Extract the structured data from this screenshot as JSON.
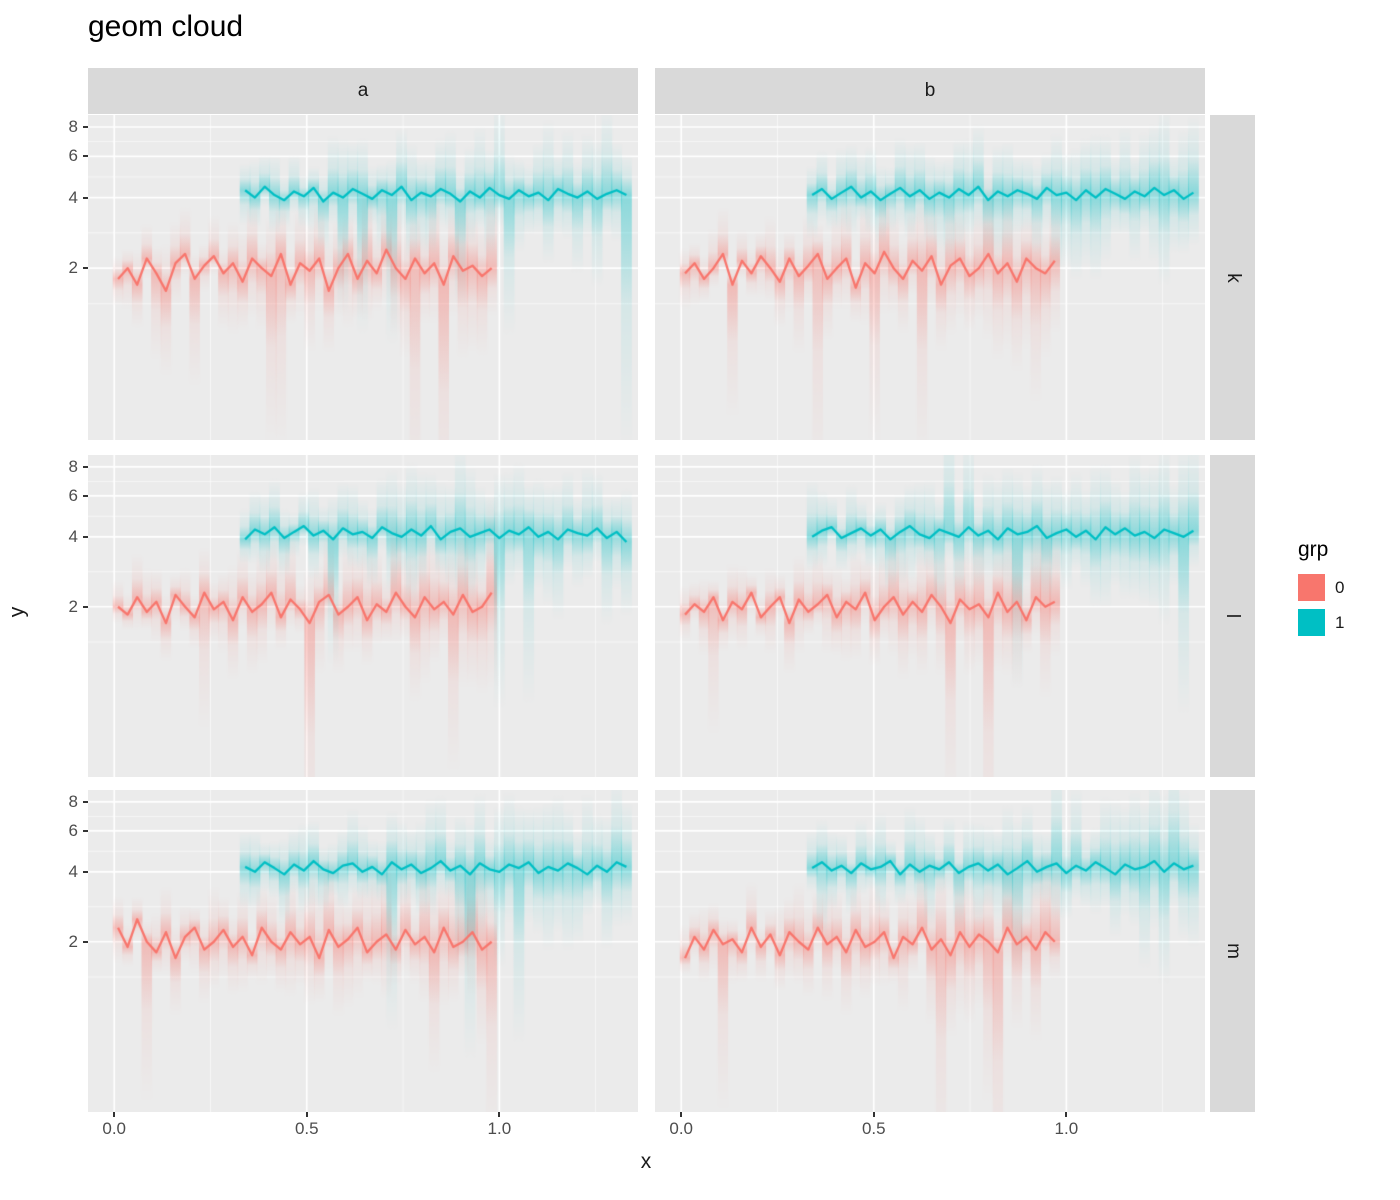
{
  "title": "geom cloud",
  "axes": {
    "x_title": "x",
    "y_title": "y",
    "x_ticks": [
      0,
      0.5,
      1
    ],
    "x_tick_labels": [
      "0.0",
      "0.5",
      "1.0"
    ],
    "y_ticks": [
      8,
      6,
      4,
      2
    ],
    "y_tick_labels": [
      "8",
      "6",
      "4",
      "2"
    ]
  },
  "facets": {
    "cols": [
      "a",
      "b"
    ],
    "rows": [
      "k",
      "l",
      "m"
    ]
  },
  "legend": {
    "title": "grp",
    "entries": [
      {
        "label": "0",
        "color": "#F8766D"
      },
      {
        "label": "1",
        "color": "#00BFC4"
      }
    ]
  },
  "chart_data": {
    "type": "line",
    "title": "geom cloud",
    "xlabel": "x",
    "ylabel": "y",
    "facet_cols": [
      "a",
      "b"
    ],
    "facet_rows": [
      "k",
      "l",
      "m"
    ],
    "panel_bg": "#EBEBEB",
    "grid_color": "#FFFFFF",
    "series_colors": {
      "0": "#F8766D",
      "1": "#00BFC4"
    },
    "scales": {
      "x_domain": [
        -0.068,
        1.36
      ],
      "y_domain": [
        0.37,
        9.0
      ],
      "y_scale": "log",
      "x_major": [
        0,
        0.5,
        1
      ],
      "x_minor": [
        0.25,
        0.75,
        1.25
      ],
      "y_major": [
        2,
        4,
        6,
        8
      ],
      "y_minor": [
        1.41,
        2.83,
        4.9,
        6.93
      ]
    },
    "cloud": {
      "0": {
        "sd_lo": 0.1,
        "sd_hi": 0.3,
        "spike_prob": 0.14,
        "spike_mult_lo": 2.0,
        "spike_mult_hi": 4.0,
        "spike_dir": "down",
        "grow_lo": 0.5,
        "grow_hi": 1.15,
        "k_outer": 2.8,
        "k_inner": 1.2,
        "alpha_outer": 0.16,
        "alpha_inner": 0.3
      },
      "1": {
        "sd_lo": 0.1,
        "sd_hi": 0.27,
        "spike_prob": 0.1,
        "spike_mult_lo": 1.8,
        "spike_mult_hi": 3.0,
        "spike_dir": "both",
        "grow_lo": 0.6,
        "grow_hi": 1.25,
        "k_outer": 2.8,
        "k_inner": 1.2,
        "alpha_outer": 0.16,
        "alpha_inner": 0.3
      }
    },
    "panels": [
      {
        "row": "k",
        "col": "a",
        "series": [
          {
            "grp": "0",
            "x0": 0.01,
            "x1": 0.98,
            "seed": 101,
            "y": [
              1.8,
              2.0,
              1.7,
              2.2,
              1.9,
              1.6,
              2.1,
              2.3,
              1.8,
              2.05,
              2.25,
              1.9,
              2.1,
              1.75,
              2.2,
              2.0,
              1.85,
              2.3,
              1.7,
              2.1,
              1.95,
              2.2,
              1.6,
              2.0,
              2.3,
              1.8,
              2.15,
              1.9,
              2.4,
              2.0,
              1.8,
              2.2,
              1.9,
              2.1,
              1.7,
              2.25,
              1.95,
              2.05,
              1.85,
              2.0
            ]
          },
          {
            "grp": "1",
            "x0": 0.34,
            "x1": 1.33,
            "seed": 202,
            "y": [
              4.3,
              4.0,
              4.45,
              4.1,
              3.9,
              4.25,
              4.05,
              4.4,
              3.85,
              4.2,
              4.0,
              4.35,
              4.15,
              3.95,
              4.3,
              4.1,
              4.45,
              3.9,
              4.2,
              4.05,
              4.35,
              4.15,
              3.85,
              4.25,
              4.0,
              4.4,
              4.1,
              3.95,
              4.3,
              4.05,
              4.2,
              3.9,
              4.35,
              4.15,
              4.0,
              4.25,
              3.95,
              4.15,
              4.3,
              4.1
            ]
          }
        ]
      },
      {
        "row": "k",
        "col": "b",
        "series": [
          {
            "grp": "0",
            "x0": 0.01,
            "x1": 0.97,
            "seed": 303,
            "y": [
              1.9,
              2.1,
              1.8,
              2.0,
              2.3,
              1.7,
              2.15,
              1.9,
              2.25,
              2.0,
              1.75,
              2.2,
              1.85,
              2.05,
              2.3,
              1.8,
              2.0,
              2.2,
              1.65,
              2.1,
              1.9,
              2.35,
              2.0,
              1.8,
              2.15,
              1.95,
              2.25,
              1.7,
              2.05,
              2.2,
              1.85,
              2.0,
              2.3,
              1.9,
              2.1,
              1.75,
              2.2,
              2.0,
              1.9,
              2.15
            ]
          },
          {
            "grp": "1",
            "x0": 0.34,
            "x1": 1.33,
            "seed": 404,
            "y": [
              4.1,
              4.35,
              3.95,
              4.2,
              4.45,
              4.0,
              4.25,
              3.9,
              4.15,
              4.4,
              4.05,
              4.3,
              3.95,
              4.2,
              4.0,
              4.35,
              4.1,
              4.45,
              3.9,
              4.25,
              4.05,
              4.3,
              4.15,
              3.95,
              4.4,
              4.1,
              4.2,
              3.9,
              4.3,
              4.0,
              4.35,
              4.15,
              3.95,
              4.25,
              4.05,
              4.4,
              4.1,
              4.3,
              3.95,
              4.2
            ]
          }
        ]
      },
      {
        "row": "l",
        "col": "a",
        "series": [
          {
            "grp": "0",
            "x0": 0.01,
            "x1": 0.98,
            "seed": 505,
            "y": [
              2.0,
              1.85,
              2.2,
              1.9,
              2.1,
              1.7,
              2.25,
              2.0,
              1.8,
              2.3,
              1.95,
              2.1,
              1.75,
              2.2,
              1.9,
              2.05,
              2.3,
              1.8,
              2.15,
              1.95,
              1.7,
              2.1,
              2.25,
              1.85,
              2.0,
              2.2,
              1.75,
              2.05,
              1.9,
              2.3,
              2.0,
              1.8,
              2.2,
              1.95,
              2.1,
              1.85,
              2.25,
              1.9,
              2.0,
              2.3
            ]
          },
          {
            "grp": "1",
            "x0": 0.34,
            "x1": 1.33,
            "seed": 606,
            "y": [
              3.9,
              4.3,
              4.1,
              4.4,
              3.95,
              4.2,
              4.45,
              4.05,
              4.25,
              3.9,
              4.35,
              4.1,
              4.2,
              3.95,
              4.4,
              4.15,
              4.0,
              4.3,
              4.05,
              4.45,
              3.9,
              4.2,
              4.35,
              4.0,
              4.15,
              4.3,
              3.95,
              4.25,
              4.1,
              4.4,
              4.0,
              4.2,
              3.9,
              4.3,
              4.15,
              4.05,
              4.35,
              3.95,
              4.2,
              3.8
            ]
          }
        ]
      },
      {
        "row": "l",
        "col": "b",
        "series": [
          {
            "grp": "0",
            "x0": 0.01,
            "x1": 0.97,
            "seed": 707,
            "y": [
              1.85,
              2.05,
              1.9,
              2.2,
              1.75,
              2.1,
              1.95,
              2.3,
              1.8,
              2.0,
              2.2,
              1.7,
              2.15,
              1.9,
              2.05,
              2.25,
              1.8,
              2.1,
              1.95,
              2.3,
              1.75,
              2.0,
              2.2,
              1.85,
              2.1,
              1.9,
              2.25,
              2.0,
              1.7,
              2.15,
              1.95,
              2.05,
              1.8,
              2.3,
              1.9,
              2.1,
              1.75,
              2.2,
              2.0,
              2.1
            ]
          },
          {
            "grp": "1",
            "x0": 0.34,
            "x1": 1.33,
            "seed": 808,
            "y": [
              4.0,
              4.25,
              4.4,
              3.95,
              4.15,
              4.35,
              4.05,
              4.3,
              3.9,
              4.2,
              4.45,
              4.1,
              3.95,
              4.3,
              4.15,
              4.0,
              4.4,
              4.05,
              4.25,
              3.9,
              4.35,
              4.1,
              4.2,
              4.45,
              3.95,
              4.15,
              4.3,
              4.0,
              4.25,
              3.9,
              4.4,
              4.1,
              4.35,
              4.05,
              4.2,
              3.95,
              4.3,
              4.15,
              4.0,
              4.25
            ]
          }
        ]
      },
      {
        "row": "m",
        "col": "a",
        "series": [
          {
            "grp": "0",
            "x0": 0.01,
            "x1": 0.98,
            "seed": 909,
            "y": [
              2.3,
              1.9,
              2.5,
              2.0,
              1.8,
              2.2,
              1.7,
              2.1,
              2.3,
              1.85,
              2.0,
              2.25,
              1.9,
              2.1,
              1.75,
              2.3,
              2.0,
              1.85,
              2.2,
              1.95,
              2.1,
              1.7,
              2.25,
              1.9,
              2.05,
              2.3,
              1.8,
              2.0,
              2.15,
              1.85,
              2.25,
              1.95,
              2.1,
              1.8,
              2.3,
              1.9,
              2.0,
              2.2,
              1.85,
              2.0
            ]
          },
          {
            "grp": "1",
            "x0": 0.34,
            "x1": 1.33,
            "seed": 1010,
            "y": [
              4.2,
              4.0,
              4.4,
              4.15,
              3.9,
              4.3,
              4.05,
              4.45,
              4.1,
              3.95,
              4.25,
              4.35,
              4.0,
              4.2,
              3.9,
              4.4,
              4.1,
              4.3,
              3.95,
              4.15,
              4.45,
              4.05,
              4.25,
              3.9,
              4.35,
              4.1,
              4.0,
              4.3,
              4.15,
              4.4,
              3.95,
              4.2,
              4.05,
              4.35,
              4.15,
              3.9,
              4.25,
              4.0,
              4.4,
              4.2
            ]
          }
        ]
      },
      {
        "row": "m",
        "col": "b",
        "series": [
          {
            "grp": "0",
            "x0": 0.01,
            "x1": 0.97,
            "seed": 1111,
            "y": [
              1.7,
              2.1,
              1.85,
              2.25,
              1.95,
              2.05,
              1.8,
              2.3,
              1.9,
              2.15,
              1.75,
              2.2,
              2.0,
              1.85,
              2.3,
              1.95,
              2.1,
              1.8,
              2.25,
              1.9,
              2.0,
              2.2,
              1.7,
              2.1,
              1.95,
              2.3,
              1.85,
              2.05,
              1.75,
              2.2,
              1.9,
              2.15,
              2.0,
              1.8,
              2.3,
              1.95,
              2.1,
              1.85,
              2.2,
              2.0
            ]
          },
          {
            "grp": "1",
            "x0": 0.34,
            "x1": 1.33,
            "seed": 1212,
            "y": [
              4.15,
              4.4,
              4.05,
              4.25,
              3.95,
              4.35,
              4.1,
              4.2,
              4.45,
              3.9,
              4.3,
              4.0,
              4.25,
              4.1,
              4.4,
              3.95,
              4.2,
              4.35,
              4.05,
              4.3,
              3.9,
              4.15,
              4.45,
              4.0,
              4.2,
              4.35,
              3.95,
              4.25,
              4.05,
              4.4,
              4.15,
              3.9,
              4.3,
              4.1,
              4.2,
              4.45,
              4.0,
              4.35,
              4.1,
              4.25
            ]
          }
        ]
      }
    ]
  }
}
